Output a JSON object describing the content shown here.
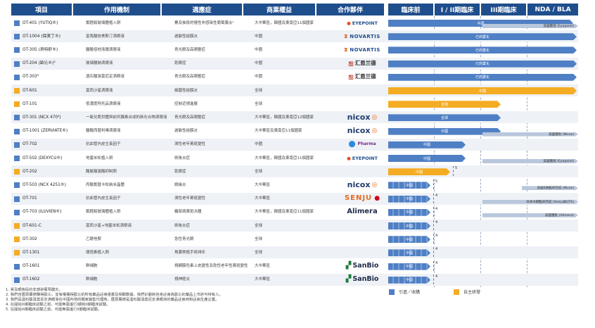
{
  "colors": {
    "header": "#1f4e8c",
    "licensed": "#4f7fc4",
    "inhouse": "#f4ac23",
    "row_alt": "#eef1f6",
    "bar_light": "#b9c7dc"
  },
  "headers": [
    "項目",
    "作用機制",
    "適應症",
    "商業權益",
    "合作夥伴",
    "臨床前",
    "I / II期臨床",
    "III期臨床",
    "NDA / BLA"
  ],
  "rows": [
    {
      "code": "OT-401 (YUTIQ®)",
      "mech": "氟輕鬆玻璃體植入劑",
      "ind": "累及後段的慢性非感染性葡萄膜炎¹",
      "rights": "大中華區，韓國及東南亞11個國家",
      "partner": "EYEPOINT",
      "logo": "eyepoint",
      "label": "中國",
      "sub": "美國獲批 (Eyepoint)"
    },
    {
      "code": "OT-1004 (保美丁®)",
      "mech": "富馬酸依美斯汀滴眼液",
      "ind": "過敏性結膜炎",
      "rights": "中國",
      "partner": "NOVARTIS",
      "logo": "novartis",
      "label": "已商業化",
      "sub": ""
    },
    {
      "code": "OT-305 (貝特舒®)",
      "mech": "鹽酸倍他洛爾滴眼液",
      "ind": "青光眼及高眼壓症",
      "rights": "中國",
      "partner": "NOVARTIS",
      "logo": "novartis",
      "label": "已商業化",
      "sub": ""
    },
    {
      "code": "OT-204 (歐沁®)²",
      "mech": "玻璃酸鈉滴眼液",
      "ind": "乾眼症",
      "rights": "中國",
      "partner": "汇恩兰德",
      "logo": "huonland",
      "label": "已商業化",
      "sub": ""
    },
    {
      "code": "OT-303³",
      "mech": "酒石酸溴莫尼定滴眼液",
      "ind": "青光眼及高眼壓症",
      "rights": "中國",
      "partner": "汇恩兰德",
      "logo": "huonland",
      "label": "已商業化",
      "sub": ""
    },
    {
      "code": "OT-601",
      "mech": "莫西沙星滴眼液",
      "ind": "細菌性結膜炎",
      "rights": "全球",
      "partner": "",
      "logo": "",
      "label": "中國",
      "sub": ""
    },
    {
      "code": "OT-101",
      "mech": "低濃度阿托品滴眼液",
      "ind": "控制近視進展",
      "rights": "全球",
      "partner": "",
      "logo": "",
      "label": "全球",
      "sub": ""
    },
    {
      "code": "OT-301 (NCX 470⁴)",
      "mech": "一氧化氮供體與前列腺素合成的新化合物滴眼液",
      "ind": "青光眼及高眼壓症",
      "rights": "大中華區，韓國及東南亞12個國家",
      "partner": "nicox",
      "logo": "nicox",
      "label": "全球",
      "sub": ""
    },
    {
      "code": "OT-1001 (ZERVIATE®)",
      "mech": "鹽酸西替利嗪滴眼液",
      "ind": "過敏性結膜炎",
      "rights": "大中華區及東南亞11個國家",
      "partner": "nicox",
      "logo": "nicox",
      "label": "中國",
      "sub": "美國獲批 (Nicox)"
    },
    {
      "code": "OT-702",
      "mech": "抗血管內皮生長因子",
      "ind": "濕性老年黃斑變性",
      "rights": "中國",
      "partner": "Pharma",
      "logo": "pharma",
      "label": "中國",
      "sub": ""
    },
    {
      "code": "OT-502 (DEXYCU®)",
      "mech": "地塞米松植入劑",
      "ind": "術後炎症",
      "rights": "大中華區，韓國及東南亞11個國家",
      "partner": "EYEPOINT",
      "logo": "eyepoint",
      "label": "中國",
      "sub": "美國獲批 (Eyepoint)"
    },
    {
      "code": "OT-202",
      "mech": "酪氨酸激酶抑制劑",
      "ind": "乾眼症",
      "rights": "全球",
      "partner": "",
      "logo": "",
      "label": "中國",
      "sub": ""
    },
    {
      "code": "OT-503 (NCX 4251®)",
      "mech": "丙酸氟替卡松納米晶體",
      "ind": "瞼緣炎",
      "rights": "大中華區",
      "partner": "nicox",
      "logo": "nicox",
      "label": "中國",
      "sub": "美國II期臨床完成 (Nicox)"
    },
    {
      "code": "OT-701",
      "mech": "抗血管內皮生長因子",
      "ind": "濕性老年黃斑變性",
      "rights": "大中華區",
      "partner": "SENJU",
      "logo": "senju",
      "label": "中國",
      "sub": "日本III期臨床完成 (Senju與GTS)"
    },
    {
      "code": "OT-703 (ILUVIEN®)",
      "mech": "氟輕鬆玻璃體植入劑",
      "ind": "糖尿病黃斑水腫",
      "rights": "大中華區，韓國及東南亞11個國家",
      "partner": "Alimera",
      "logo": "alimera",
      "label": "中國",
      "sub": "美國獲批 (Alimera)"
    },
    {
      "code": "OT-601-C",
      "mech": "莫西沙星+地塞米松滴眼液",
      "ind": "術後炎症",
      "rights": "全球",
      "partner": "",
      "logo": "",
      "label": "中國",
      "sub": ""
    },
    {
      "code": "OT-302",
      "mech": "乙酰唑胺",
      "ind": "急性青光眼",
      "rights": "全球",
      "partner": "",
      "logo": "",
      "label": "中國",
      "sub": ""
    },
    {
      "code": "OT-1301",
      "mech": "環孢素植入劑",
      "ind": "角膜移植手術排斥",
      "rights": "全球",
      "partner": "",
      "logo": "",
      "label": "中國",
      "sub": ""
    },
    {
      "code": "OT-1601",
      "mech": "幹細胞",
      "ind": "視網膜色素上皮變性及乾性老年性黃斑變性",
      "rights": "大中華區",
      "partner": "SanBio",
      "logo": "sanbio",
      "label": "中國",
      "sub": ""
    },
    {
      "code": "OT-1602",
      "mech": "幹細胞",
      "ind": "視神經炎",
      "rights": "大中華區",
      "partner": "SanBio",
      "logo": "sanbio",
      "label": "中國",
      "sub": ""
    }
  ],
  "milestones": {
    "m5": "5",
    "m4": "4"
  },
  "footnotes": [
    "1.  累及眼後段的非感染葡萄膜炎。",
    "2.  我們自匯恩蘭德購得歐沁，並有權獨得歐沁的所有藥品註冊證書及相關數據。我們計劃將自身註冊為歐沁的藥品上市許可持有人。",
    "3.  我們是酒石酸溴莫尼定滴眼液在中國內地的獨家銷售代理商。匯恩蘭德是酒石酸溴莫尼定滴眼液的藥品註冊商和註冊生產企業。",
    "4.  在開始III期臨床試驗之前，可能無需進行I期和II期臨床試驗。",
    "5.  在開始III期臨床試驗之前，可能無需進行II期臨床試驗。"
  ],
  "legend": {
    "licensed": "引進／收購",
    "inhouse": "自主研發"
  }
}
